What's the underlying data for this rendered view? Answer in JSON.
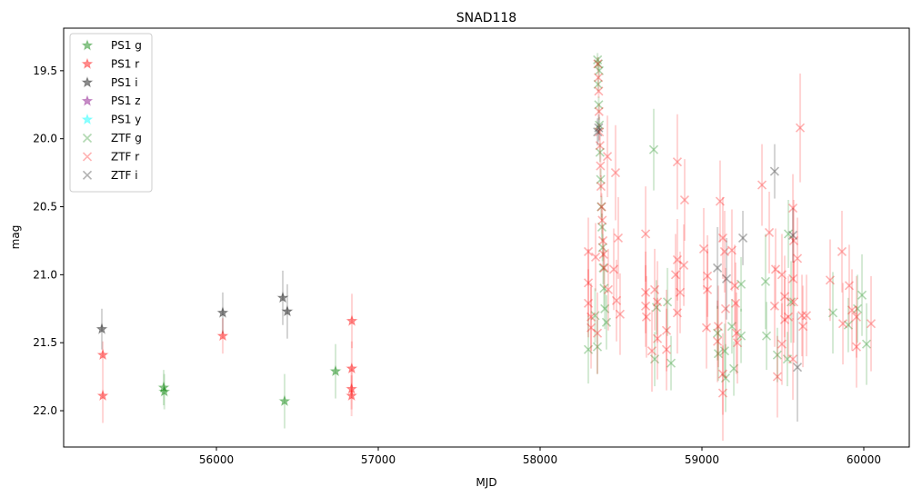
{
  "chart_data": {
    "type": "scatter",
    "title": "SNAD118",
    "xlabel": "MJD",
    "ylabel": "mag",
    "xlim": [
      55056,
      60281
    ],
    "ylim": [
      22.267,
      19.187
    ],
    "y_inverted": true,
    "grid": false,
    "legend_placement": "top-left",
    "x_ticks": [
      56000,
      57000,
      58000,
      59000,
      60000
    ],
    "x_tick_labels": [
      "56000",
      "57000",
      "58000",
      "59000",
      "60000"
    ],
    "y_ticks": [
      19.5,
      20.0,
      20.5,
      21.0,
      21.5,
      22.0
    ],
    "y_tick_labels": [
      "19.5",
      "20.0",
      "20.5",
      "21.0",
      "21.5",
      "22.0"
    ],
    "point_format": [
      "MJD",
      "mag",
      "mag_err"
    ],
    "series": [
      {
        "name": "PS1 g",
        "marker": "star",
        "color": "#008000",
        "points": [
          [
            55674,
            21.83,
            0.13
          ],
          [
            55678,
            21.86,
            0.13
          ],
          [
            56421,
            21.93,
            0.2
          ],
          [
            56736,
            21.71,
            0.2
          ]
        ]
      },
      {
        "name": "PS1 r",
        "marker": "star",
        "color": "#ff0000",
        "points": [
          [
            55298,
            21.59,
            0.1
          ],
          [
            55298,
            21.89,
            0.2
          ],
          [
            56039,
            21.45,
            0.13
          ],
          [
            56837,
            21.34,
            0.2
          ],
          [
            56836,
            21.69,
            0.2
          ],
          [
            56835,
            21.84,
            0.15
          ],
          [
            56835,
            21.89,
            0.15
          ]
        ]
      },
      {
        "name": "PS1 i",
        "marker": "star",
        "color": "#000000",
        "points": [
          [
            55292,
            21.4,
            0.15
          ],
          [
            56039,
            21.28,
            0.15
          ],
          [
            56410,
            21.17,
            0.2
          ],
          [
            56438,
            21.27,
            0.2
          ]
        ]
      },
      {
        "name": "PS1 z",
        "marker": "star",
        "color": "#800080",
        "points": []
      },
      {
        "name": "PS1 y",
        "marker": "star",
        "color": "#00ffff",
        "points": []
      },
      {
        "name": "ZTF g",
        "marker": "x",
        "color": "#008000",
        "points": [
          [
            58355,
            19.42,
            0.05
          ],
          [
            58360,
            19.45,
            0.05
          ],
          [
            58365,
            19.5,
            0.05
          ],
          [
            58358,
            19.6,
            0.05
          ],
          [
            58362,
            19.75,
            0.06
          ],
          [
            58366,
            19.9,
            0.06
          ],
          [
            58370,
            20.1,
            0.07
          ],
          [
            58374,
            20.3,
            0.08
          ],
          [
            58378,
            20.5,
            0.08
          ],
          [
            58382,
            20.65,
            0.1
          ],
          [
            58386,
            20.8,
            0.1
          ],
          [
            58390,
            20.95,
            0.12
          ],
          [
            58395,
            21.1,
            0.15
          ],
          [
            58400,
            21.25,
            0.15
          ],
          [
            58410,
            21.35,
            0.2
          ],
          [
            58354,
            21.53,
            0.2
          ],
          [
            58340,
            21.3,
            0.2
          ],
          [
            58298,
            21.55,
            0.25
          ],
          [
            58702,
            20.08,
            0.3
          ],
          [
            58708,
            21.62,
            0.2
          ],
          [
            58809,
            21.65,
            0.2
          ],
          [
            58719,
            21.24,
            0.2
          ],
          [
            58787,
            21.2,
            0.25
          ],
          [
            59096,
            21.43,
            0.2
          ],
          [
            59101,
            21.58,
            0.2
          ],
          [
            59146,
            21.76,
            0.25
          ],
          [
            59185,
            21.38,
            0.2
          ],
          [
            59197,
            21.69,
            0.2
          ],
          [
            59140,
            21.56,
            0.2
          ],
          [
            59242,
            21.07,
            0.2
          ],
          [
            59242,
            21.45,
            0.2
          ],
          [
            59393,
            21.05,
            0.35
          ],
          [
            59399,
            21.45,
            0.25
          ],
          [
            59466,
            21.59,
            0.2
          ],
          [
            59528,
            21.62,
            0.2
          ],
          [
            59534,
            20.7,
            0.25
          ],
          [
            59551,
            21.2,
            0.3
          ],
          [
            59809,
            21.28,
            0.3
          ],
          [
            59904,
            21.37,
            0.2
          ],
          [
            59961,
            21.25,
            0.25
          ],
          [
            59989,
            21.15,
            0.3
          ],
          [
            60017,
            21.51,
            0.3
          ]
        ]
      },
      {
        "name": "ZTF r",
        "marker": "x",
        "color": "#ff0000",
        "points": [
          [
            58356,
            19.45,
            0.05
          ],
          [
            58360,
            19.55,
            0.05
          ],
          [
            58362,
            19.65,
            0.05
          ],
          [
            58364,
            19.8,
            0.06
          ],
          [
            58366,
            19.95,
            0.06
          ],
          [
            58370,
            20.05,
            0.07
          ],
          [
            58373,
            20.2,
            0.08
          ],
          [
            58376,
            20.35,
            0.08
          ],
          [
            58380,
            20.5,
            0.1
          ],
          [
            58384,
            20.6,
            0.1
          ],
          [
            58388,
            20.75,
            0.12
          ],
          [
            58392,
            20.85,
            0.12
          ],
          [
            58396,
            20.95,
            0.15
          ],
          [
            58298,
            20.83,
            0.25
          ],
          [
            58343,
            20.87,
            0.25
          ],
          [
            58298,
            21.06,
            0.25
          ],
          [
            58298,
            21.21,
            0.25
          ],
          [
            58315,
            21.31,
            0.25
          ],
          [
            58315,
            21.39,
            0.3
          ],
          [
            58354,
            21.43,
            0.3
          ],
          [
            58416,
            20.13,
            0.3
          ],
          [
            58466,
            20.25,
            0.35
          ],
          [
            58483,
            20.73,
            0.3
          ],
          [
            58494,
            21.29,
            0.3
          ],
          [
            58472,
            21.19,
            0.3
          ],
          [
            58455,
            20.96,
            0.3
          ],
          [
            58421,
            21.11,
            0.3
          ],
          [
            58652,
            20.7,
            0.35
          ],
          [
            58652,
            21.13,
            0.3
          ],
          [
            58652,
            21.23,
            0.3
          ],
          [
            58657,
            21.31,
            0.3
          ],
          [
            58708,
            21.11,
            0.3
          ],
          [
            58725,
            21.2,
            0.3
          ],
          [
            58781,
            21.41,
            0.3
          ],
          [
            58691,
            21.56,
            0.3
          ],
          [
            58725,
            21.47,
            0.3
          ],
          [
            58781,
            21.55,
            0.3
          ],
          [
            58837,
            21.0,
            0.3
          ],
          [
            58848,
            20.89,
            0.3
          ],
          [
            58888,
            20.93,
            0.3
          ],
          [
            58865,
            21.13,
            0.3
          ],
          [
            58848,
            21.28,
            0.3
          ],
          [
            58848,
            20.17,
            0.35
          ],
          [
            58893,
            20.45,
            0.3
          ],
          [
            59011,
            20.81,
            0.3
          ],
          [
            59034,
            21.01,
            0.3
          ],
          [
            59034,
            21.11,
            0.3
          ],
          [
            59028,
            21.39,
            0.3
          ],
          [
            59112,
            20.46,
            0.3
          ],
          [
            59129,
            20.73,
            0.3
          ],
          [
            59140,
            20.83,
            0.3
          ],
          [
            59185,
            20.82,
            0.3
          ],
          [
            59202,
            21.08,
            0.3
          ],
          [
            59208,
            21.21,
            0.3
          ],
          [
            59146,
            21.25,
            0.3
          ],
          [
            59213,
            21.43,
            0.3
          ],
          [
            59219,
            21.5,
            0.3
          ],
          [
            59129,
            21.73,
            0.3
          ],
          [
            59129,
            21.87,
            0.35
          ],
          [
            59101,
            21.38,
            0.3
          ],
          [
            59096,
            21.49,
            0.3
          ],
          [
            59371,
            20.34,
            0.3
          ],
          [
            59416,
            20.69,
            0.3
          ],
          [
            59455,
            20.96,
            0.3
          ],
          [
            59449,
            21.23,
            0.3
          ],
          [
            59494,
            21.0,
            0.3
          ],
          [
            59511,
            21.16,
            0.3
          ],
          [
            59534,
            21.31,
            0.3
          ],
          [
            59562,
            20.51,
            0.25
          ],
          [
            59567,
            20.75,
            0.3
          ],
          [
            59562,
            21.03,
            0.3
          ],
          [
            59567,
            21.2,
            0.3
          ],
          [
            59590,
            20.88,
            0.3
          ],
          [
            59618,
            21.3,
            0.3
          ],
          [
            59624,
            21.38,
            0.3
          ],
          [
            59646,
            21.3,
            0.3
          ],
          [
            59466,
            21.75,
            0.3
          ],
          [
            59562,
            21.62,
            0.3
          ],
          [
            59494,
            21.51,
            0.3
          ],
          [
            59607,
            19.92,
            0.4
          ],
          [
            59511,
            21.33,
            0.3
          ],
          [
            59792,
            21.04,
            0.3
          ],
          [
            59865,
            20.83,
            0.3
          ],
          [
            59910,
            21.08,
            0.3
          ],
          [
            59871,
            21.36,
            0.3
          ],
          [
            59927,
            21.26,
            0.3
          ],
          [
            59955,
            21.31,
            0.3
          ],
          [
            59955,
            21.53,
            0.3
          ],
          [
            60045,
            21.36,
            0.35
          ]
        ]
      },
      {
        "name": "ZTF i",
        "marker": "x",
        "color": "#000000",
        "points": [
          [
            58355,
            19.95,
            0.1
          ],
          [
            58362,
            19.92,
            0.1
          ],
          [
            59096,
            20.95,
            0.3
          ],
          [
            59152,
            21.03,
            0.3
          ],
          [
            59253,
            20.73,
            0.2
          ],
          [
            59449,
            20.24,
            0.2
          ],
          [
            59562,
            20.71,
            0.2
          ],
          [
            59590,
            21.68,
            0.4
          ]
        ]
      }
    ]
  }
}
